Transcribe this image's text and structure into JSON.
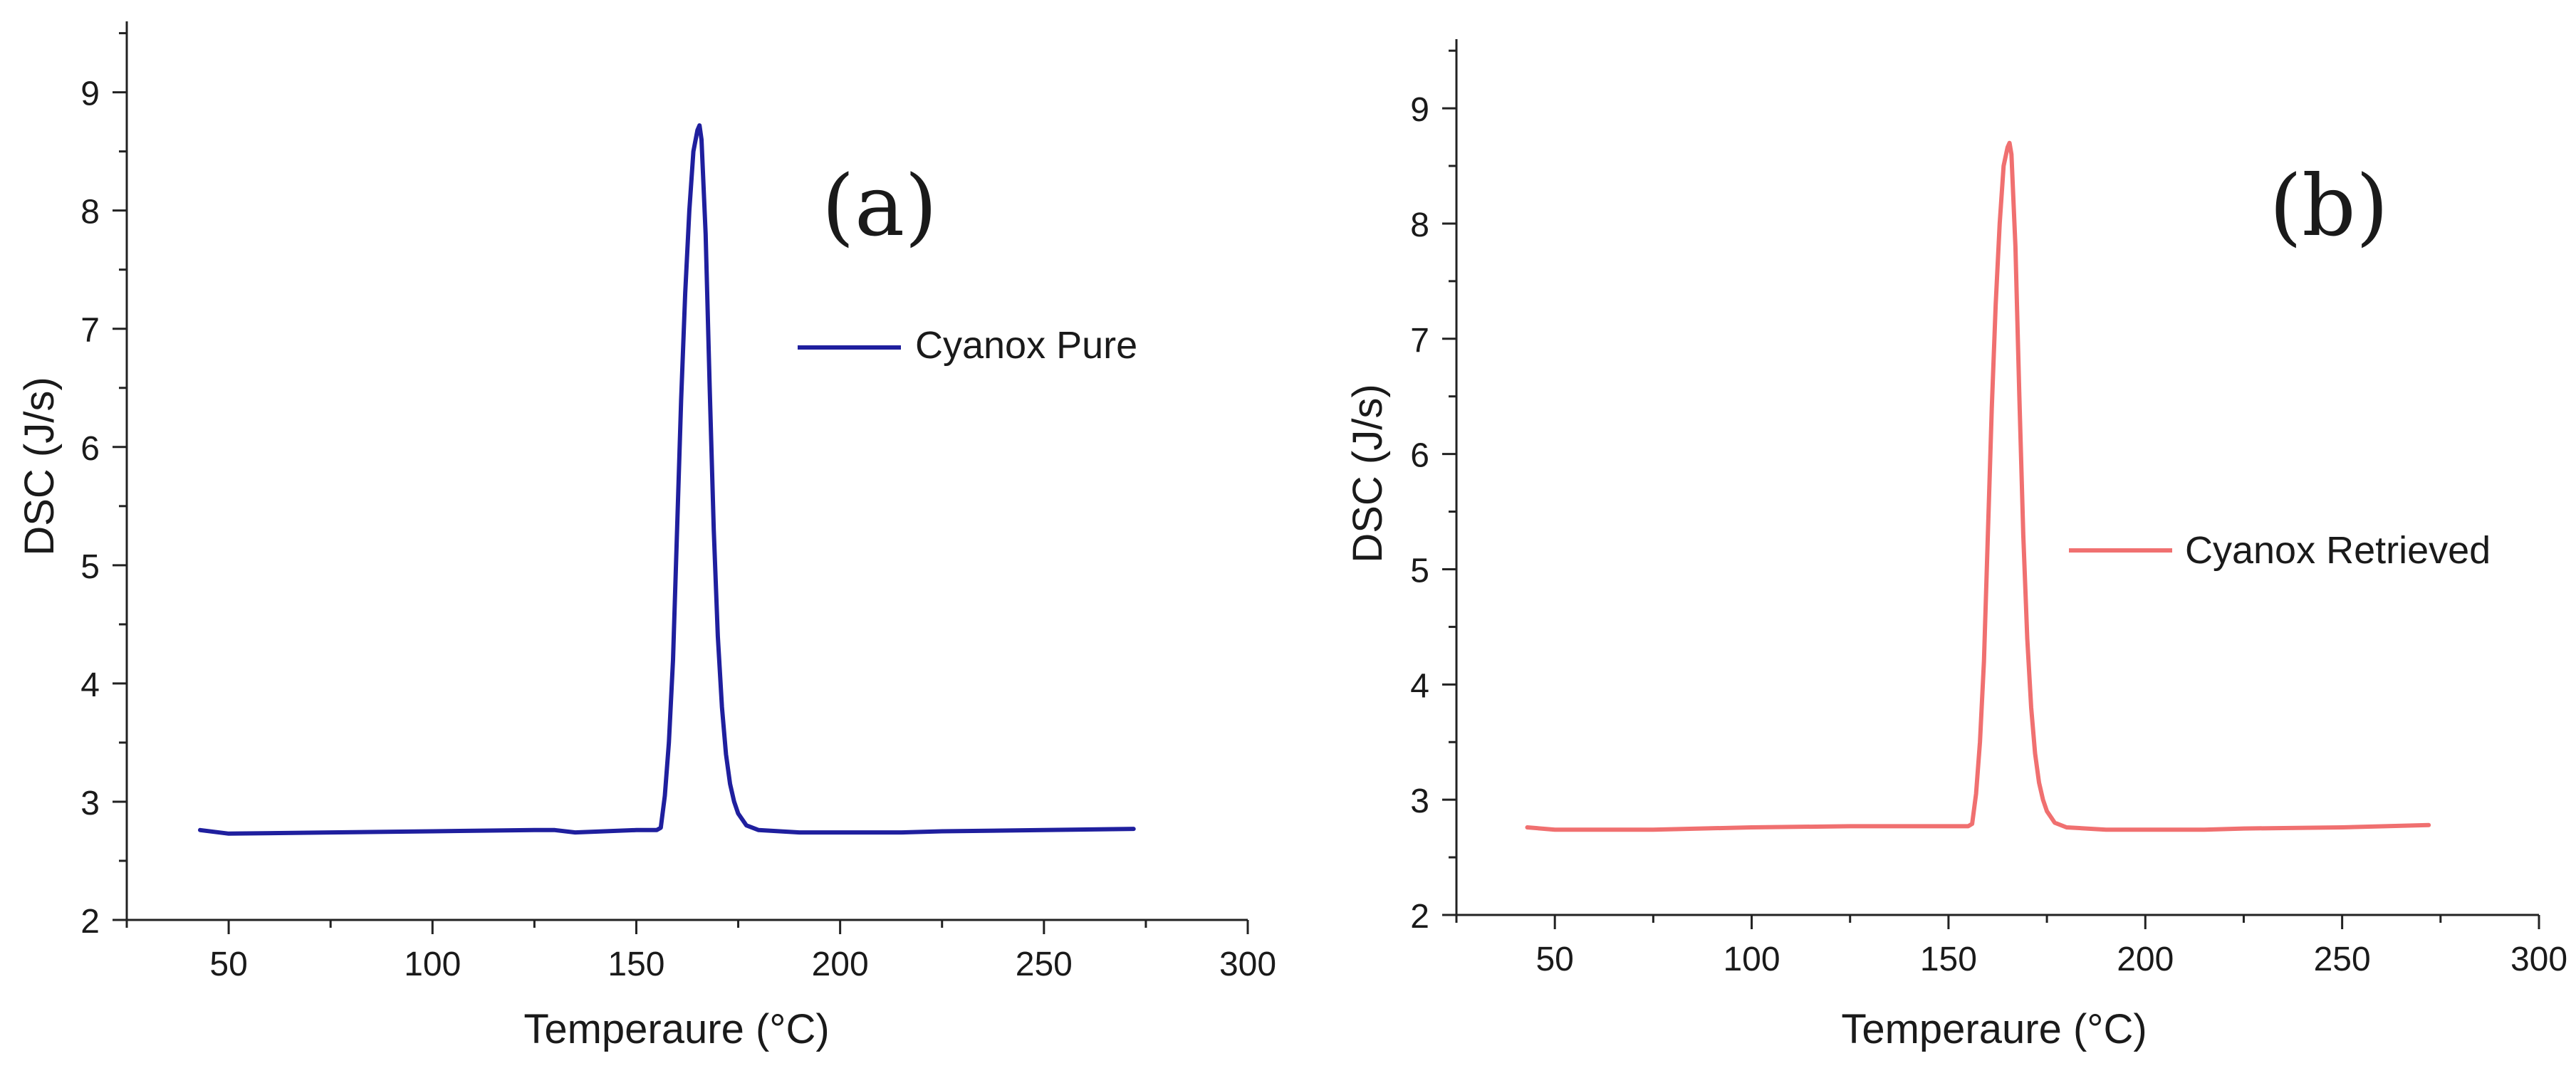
{
  "chart_data": [
    {
      "type": "line",
      "panel_label": "(a)",
      "xlabel": "Temperaure (°C)",
      "ylabel": "DSC (J/s)",
      "xlim": [
        25,
        300
      ],
      "ylim": [
        2,
        9.6
      ],
      "xticks": [
        "50",
        "100",
        "150",
        "200",
        "250",
        "300"
      ],
      "yticks": [
        "2",
        "3",
        "4",
        "5",
        "6",
        "7",
        "8",
        "9"
      ],
      "legend_position": "right of peak, upper middle",
      "series": [
        {
          "name": "Cyanox Pure",
          "color": "#1f1f9e",
          "x": [
            43,
            50,
            75,
            100,
            125,
            130,
            135,
            150,
            155,
            156,
            157,
            158,
            159,
            160,
            161,
            162,
            163,
            164,
            165,
            165.5,
            166,
            167,
            168,
            169,
            170,
            171,
            172,
            173,
            174,
            175,
            177,
            180,
            190,
            200,
            215,
            225,
            250,
            272
          ],
          "y": [
            2.76,
            2.73,
            2.74,
            2.75,
            2.76,
            2.76,
            2.74,
            2.76,
            2.76,
            2.78,
            3.05,
            3.5,
            4.2,
            5.3,
            6.4,
            7.3,
            8.0,
            8.5,
            8.68,
            8.72,
            8.6,
            7.8,
            6.5,
            5.3,
            4.4,
            3.8,
            3.4,
            3.15,
            3.0,
            2.9,
            2.8,
            2.76,
            2.74,
            2.74,
            2.74,
            2.75,
            2.76,
            2.77
          ]
        }
      ]
    },
    {
      "type": "line",
      "panel_label": "(b)",
      "xlabel": "Temperaure (°C)",
      "ylabel": "DSC (J/s)",
      "xlim": [
        25,
        300
      ],
      "ylim": [
        2,
        9.6
      ],
      "xticks": [
        "50",
        "100",
        "150",
        "200",
        "250",
        "300"
      ],
      "yticks": [
        "2",
        "3",
        "4",
        "5",
        "6",
        "7",
        "8",
        "9"
      ],
      "legend_position": "right, middle",
      "series": [
        {
          "name": "Cyanox Retrieved",
          "color": "#f07070",
          "x": [
            43,
            50,
            75,
            100,
            125,
            150,
            155,
            156,
            157,
            158,
            159,
            160,
            161,
            162,
            163,
            164,
            165,
            165.5,
            166,
            167,
            168,
            169,
            170,
            171,
            172,
            173,
            174,
            175,
            177,
            180,
            190,
            200,
            215,
            225,
            250,
            272
          ],
          "y": [
            2.76,
            2.74,
            2.74,
            2.76,
            2.77,
            2.77,
            2.77,
            2.79,
            3.05,
            3.5,
            4.2,
            5.3,
            6.4,
            7.3,
            8.0,
            8.5,
            8.66,
            8.7,
            8.6,
            7.8,
            6.5,
            5.3,
            4.4,
            3.8,
            3.4,
            3.15,
            3.0,
            2.9,
            2.8,
            2.76,
            2.74,
            2.74,
            2.74,
            2.75,
            2.76,
            2.78
          ]
        }
      ]
    }
  ]
}
